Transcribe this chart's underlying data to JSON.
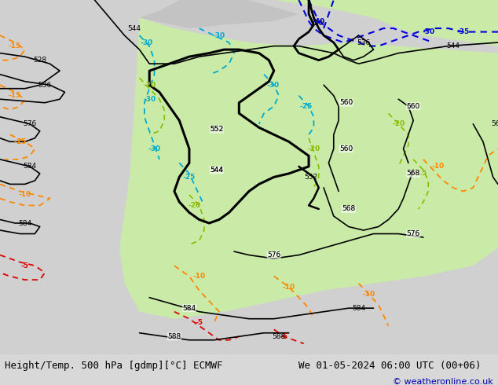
{
  "title_left": "Height/Temp. 500 hPa [gdmp][°C] ECMWF",
  "title_right": "We 01-05-2024 06:00 UTC (00+06)",
  "copyright": "© weatheronline.co.uk",
  "bg_color": "#d8d8d8",
  "land_color": "#c8c8c8",
  "green_fill_color": "#c8f0a0",
  "fig_width": 6.34,
  "fig_height": 4.9,
  "dpi": 100,
  "title_fontsize": 9,
  "copyright_fontsize": 8,
  "copyright_color": "#0000aa"
}
